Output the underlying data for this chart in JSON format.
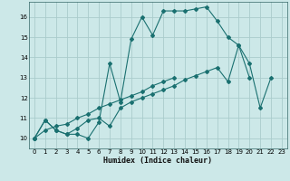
{
  "xlabel": "Humidex (Indice chaleur)",
  "background_color": "#cce8e8",
  "grid_color": "#aacccc",
  "line_color": "#1a7070",
  "xlim": [
    -0.5,
    23.5
  ],
  "ylim": [
    9.5,
    16.75
  ],
  "xticks": [
    0,
    1,
    2,
    3,
    4,
    5,
    6,
    7,
    8,
    9,
    10,
    11,
    12,
    13,
    14,
    15,
    16,
    17,
    18,
    19,
    20,
    21,
    22,
    23
  ],
  "yticks": [
    10,
    11,
    12,
    13,
    14,
    15,
    16
  ],
  "series": [
    [
      10.0,
      10.9,
      10.4,
      10.2,
      10.2,
      10.0,
      10.8,
      13.7,
      11.8,
      14.9,
      16.0,
      15.1,
      16.3,
      16.3,
      16.3,
      16.4,
      16.5,
      15.8,
      15.0,
      14.6,
      13.7,
      11.5,
      13.0
    ],
    [
      10.0,
      10.9,
      10.4,
      10.2,
      10.5,
      10.9,
      11.0,
      10.6,
      11.5,
      11.8,
      12.0,
      12.2,
      12.4,
      12.6,
      12.9,
      13.1,
      13.3,
      13.5,
      12.8,
      14.6,
      13.0
    ],
    [
      10.0,
      10.4,
      10.6,
      10.7,
      11.0,
      11.2,
      11.5,
      11.7,
      11.9,
      12.1,
      12.3,
      12.6,
      12.8,
      13.0
    ]
  ],
  "series_x": [
    [
      0,
      1,
      2,
      3,
      4,
      5,
      6,
      7,
      8,
      9,
      10,
      11,
      12,
      13,
      14,
      15,
      16,
      17,
      18,
      19,
      20,
      21,
      22
    ],
    [
      0,
      1,
      2,
      3,
      4,
      5,
      6,
      7,
      8,
      9,
      10,
      11,
      12,
      13,
      14,
      15,
      16,
      17,
      18,
      19,
      20
    ],
    [
      0,
      1,
      2,
      3,
      4,
      5,
      6,
      7,
      8,
      9,
      10,
      11,
      12,
      13
    ]
  ]
}
